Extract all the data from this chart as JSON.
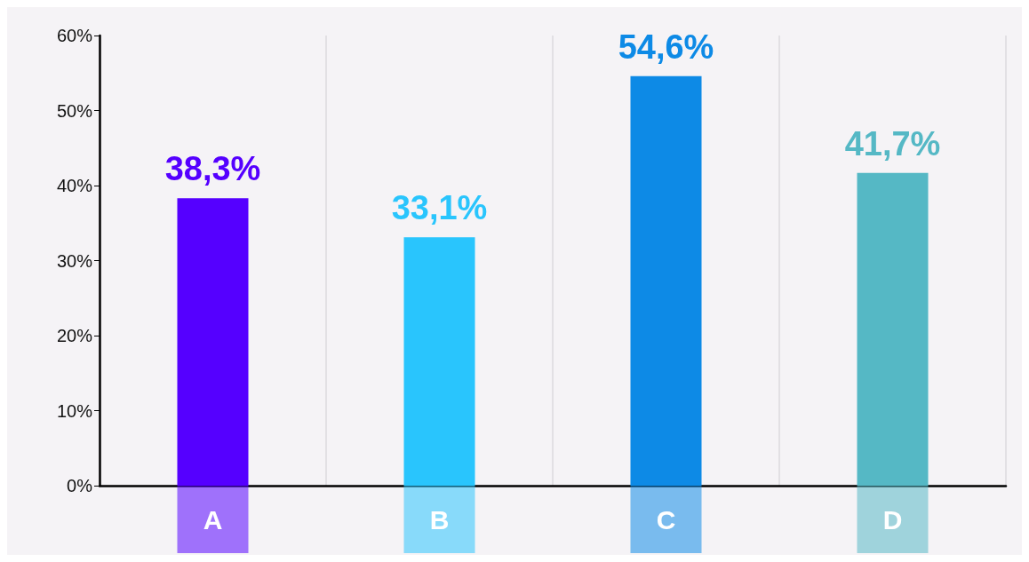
{
  "chart_data": {
    "type": "bar",
    "categories": [
      "A",
      "B",
      "C",
      "D"
    ],
    "values": [
      38.3,
      33.1,
      54.6,
      41.7
    ],
    "colors": [
      "#5500ff",
      "#29c5fd",
      "#0d8ae6",
      "#55b8c5"
    ],
    "value_labels": [
      "38,3%",
      "33,1%",
      "54,6%",
      "41,7%"
    ],
    "ylim": [
      0,
      60
    ],
    "yticks": [
      {
        "value": 0,
        "label": "0%"
      },
      {
        "value": 10,
        "label": "10%"
      },
      {
        "value": 20,
        "label": "20%"
      },
      {
        "value": 30,
        "label": "30%"
      },
      {
        "value": 40,
        "label": "40%"
      },
      {
        "value": 50,
        "label": "50%"
      },
      {
        "value": 60,
        "label": "60%"
      }
    ],
    "grid": "x"
  }
}
